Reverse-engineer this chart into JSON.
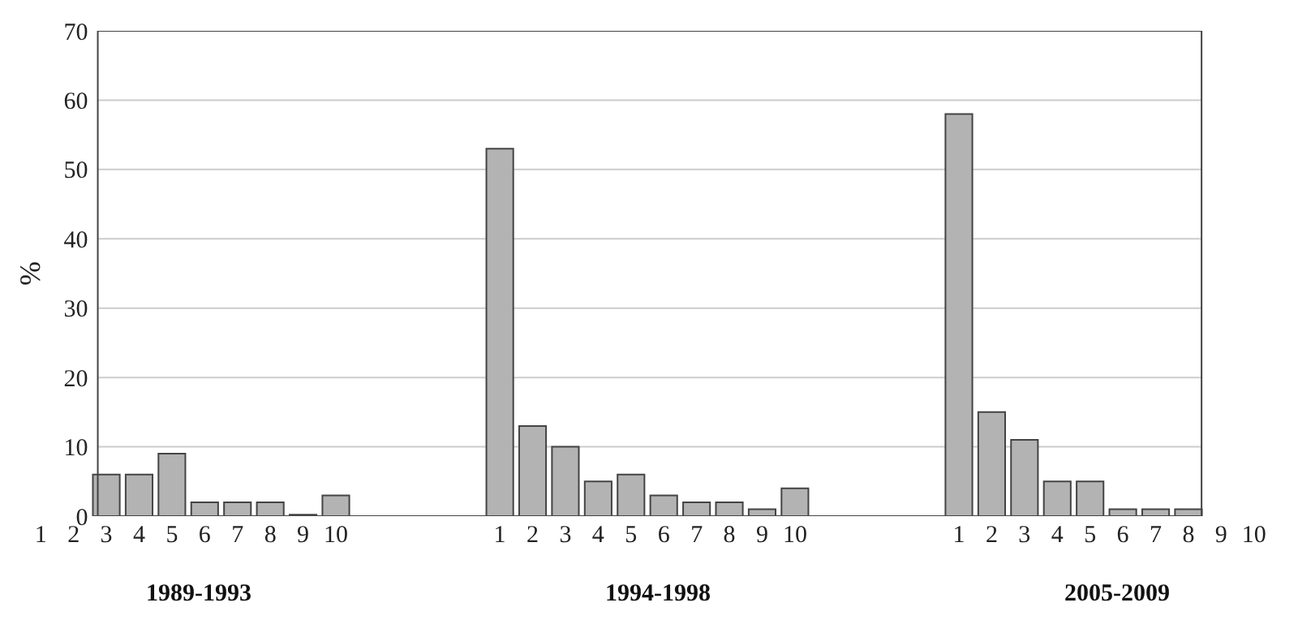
{
  "chart_data": {
    "type": "bar",
    "ylabel": "%",
    "categories": [
      "1",
      "2",
      "3",
      "4",
      "5",
      "6",
      "7",
      "8",
      "9",
      "10",
      null,
      null,
      null,
      null,
      "1",
      "2",
      "3",
      "4",
      "5",
      "6",
      "7",
      "8",
      "9",
      "10",
      null,
      null,
      null,
      null,
      "1",
      "2",
      "3",
      "4",
      "5",
      "6",
      "7",
      "8",
      "9",
      "10"
    ],
    "values": [
      null,
      null,
      6,
      6,
      9,
      2,
      2,
      2,
      0.2,
      3,
      null,
      null,
      null,
      null,
      53,
      13,
      10,
      5,
      6,
      3,
      2,
      2,
      1,
      4,
      null,
      null,
      null,
      null,
      58,
      15,
      11,
      5,
      5,
      1,
      1,
      1,
      null,
      null
    ],
    "color": "#b3b3b3",
    "ylim": [
      0,
      70
    ],
    "yticks": [
      0,
      10,
      20,
      30,
      40,
      50,
      60,
      70
    ],
    "grid": "y",
    "annotations": [
      "1989-1993",
      "1994-1998",
      "2005-2009"
    ]
  }
}
